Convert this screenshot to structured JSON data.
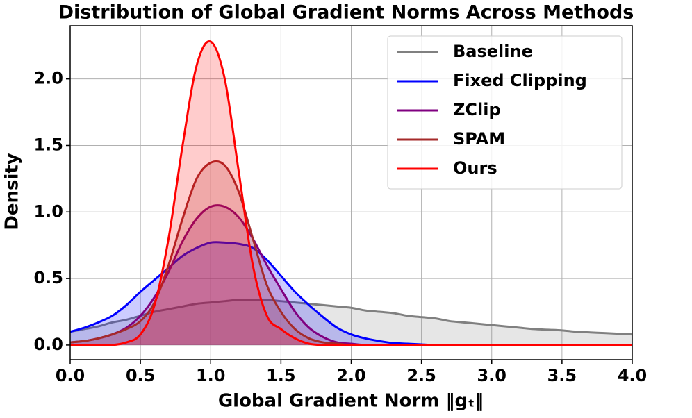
{
  "chart_data": {
    "type": "density",
    "title": "Distribution of Global Gradient Norms Across Methods",
    "x_label": "Global Gradient Norm ‖gₜ‖",
    "y_label": "Density",
    "xlim": [
      0,
      4
    ],
    "ylim": [
      -0.11,
      2.4
    ],
    "xticks": [
      {
        "value": 0,
        "label": "0.0"
      },
      0.5,
      {
        "value": 1,
        "label": "1.0"
      },
      1.5,
      {
        "value": 2,
        "label": "2.0"
      },
      2.5,
      {
        "value": 3,
        "label": "3.0"
      },
      3.5,
      {
        "value": 4,
        "label": "4.0"
      }
    ],
    "yticks": [
      {
        "value": 0,
        "label": "0.0"
      },
      0.5,
      {
        "value": 1,
        "label": "1.0"
      },
      1.5,
      {
        "value": 2,
        "label": "2.0"
      }
    ],
    "grid": true,
    "legend": "upper right",
    "x": [
      0,
      0.1,
      0.2,
      0.3,
      0.4,
      0.5,
      0.6,
      0.7,
      0.8,
      0.9,
      1.0,
      1.1,
      1.2,
      1.3,
      1.4,
      1.5,
      1.6,
      1.7,
      1.8,
      1.9,
      2.0,
      2.1,
      2.2,
      2.3,
      2.4,
      2.5,
      2.6,
      2.7,
      2.8,
      2.9,
      3.0,
      3.1,
      3.2,
      3.3,
      3.4,
      3.5,
      3.6,
      3.7,
      3.8,
      3.9,
      4.0
    ],
    "series": [
      {
        "name": "Baseline",
        "color": "#808080",
        "values": [
          0.1,
          0.12,
          0.14,
          0.17,
          0.19,
          0.22,
          0.25,
          0.27,
          0.29,
          0.31,
          0.32,
          0.33,
          0.34,
          0.34,
          0.34,
          0.33,
          0.32,
          0.31,
          0.3,
          0.29,
          0.28,
          0.26,
          0.25,
          0.24,
          0.22,
          0.21,
          0.2,
          0.18,
          0.17,
          0.16,
          0.15,
          0.14,
          0.13,
          0.12,
          0.115,
          0.11,
          0.1,
          0.095,
          0.09,
          0.085,
          0.08
        ]
      },
      {
        "name": "Fixed Clipping",
        "color": "#0000ff",
        "values": [
          0.1,
          0.13,
          0.17,
          0.22,
          0.3,
          0.4,
          0.49,
          0.58,
          0.67,
          0.73,
          0.77,
          0.77,
          0.76,
          0.73,
          0.64,
          0.52,
          0.4,
          0.3,
          0.21,
          0.13,
          0.08,
          0.05,
          0.03,
          0.015,
          0.01,
          0.005,
          0,
          0,
          0,
          0,
          0,
          0,
          0,
          0,
          0,
          0,
          0,
          0,
          0,
          0,
          0
        ]
      },
      {
        "name": "ZClip",
        "color": "#800080",
        "values": [
          0.02,
          0.03,
          0.05,
          0.08,
          0.13,
          0.22,
          0.36,
          0.55,
          0.78,
          0.95,
          1.04,
          1.04,
          0.96,
          0.8,
          0.6,
          0.42,
          0.25,
          0.13,
          0.06,
          0.02,
          0.01,
          0,
          0,
          0,
          0,
          0,
          0,
          0,
          0,
          0,
          0,
          0,
          0,
          0,
          0,
          0,
          0,
          0,
          0,
          0,
          0
        ]
      },
      {
        "name": "SPAM",
        "color": "#a52a2a",
        "values": [
          0.02,
          0.03,
          0.05,
          0.08,
          0.12,
          0.18,
          0.32,
          0.6,
          0.95,
          1.25,
          1.37,
          1.35,
          1.15,
          0.8,
          0.45,
          0.25,
          0.12,
          0.05,
          0.02,
          0.01,
          0,
          0,
          0,
          0,
          0,
          0,
          0,
          0,
          0,
          0,
          0,
          0,
          0,
          0,
          0,
          0,
          0,
          0,
          0,
          0,
          0
        ]
      },
      {
        "name": "Ours",
        "color": "#ff0000",
        "values": [
          0,
          0,
          0,
          0,
          0.02,
          0.08,
          0.3,
          0.8,
          1.5,
          2.1,
          2.28,
          2.0,
          1.3,
          0.6,
          0.22,
          0.12,
          0.05,
          0.01,
          0,
          0,
          0,
          0,
          0,
          0,
          0,
          0,
          0,
          0,
          0,
          0,
          0,
          0,
          0,
          0,
          0,
          0,
          0,
          0,
          0,
          0,
          0
        ]
      }
    ]
  }
}
